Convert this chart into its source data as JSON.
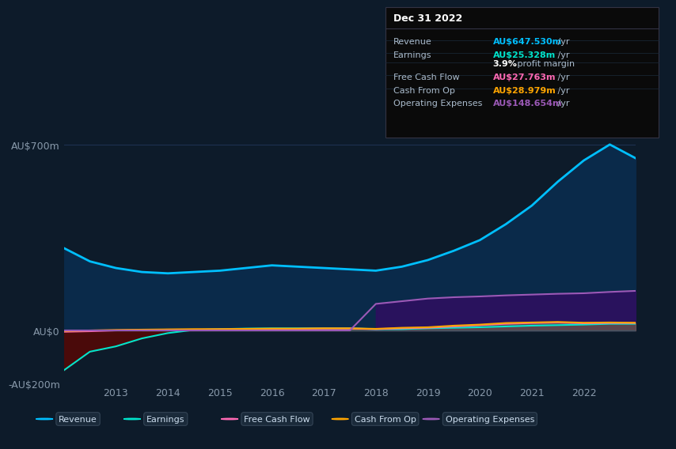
{
  "bg_color": "#0d1b2a",
  "plot_bg_color": "#0d1b2a",
  "years": [
    2012,
    2012.5,
    2013,
    2013.5,
    2014,
    2014.5,
    2015,
    2015.5,
    2016,
    2016.5,
    2017,
    2017.5,
    2018,
    2018.5,
    2019,
    2019.5,
    2020,
    2020.5,
    2021,
    2021.5,
    2022,
    2022.5,
    2023
  ],
  "revenue": [
    310,
    260,
    235,
    220,
    215,
    220,
    225,
    235,
    245,
    240,
    235,
    230,
    225,
    240,
    265,
    300,
    340,
    400,
    470,
    560,
    640,
    700,
    648
  ],
  "earnings": [
    -150,
    -80,
    -60,
    -30,
    -10,
    2,
    5,
    7,
    8,
    8,
    8,
    8,
    5,
    5,
    8,
    10,
    12,
    15,
    18,
    20,
    22,
    25,
    25
  ],
  "free_cash_flow": [
    -5,
    -3,
    0,
    2,
    3,
    3,
    4,
    5,
    5,
    6,
    7,
    7,
    5,
    8,
    10,
    15,
    20,
    25,
    28,
    30,
    27,
    28,
    28
  ],
  "cash_from_op": [
    -2,
    0,
    2,
    3,
    4,
    5,
    5,
    6,
    7,
    7,
    8,
    8,
    6,
    10,
    12,
    18,
    22,
    28,
    30,
    32,
    29,
    30,
    29
  ],
  "operating_expenses": [
    0,
    0,
    0,
    0,
    0,
    0,
    0,
    0,
    0,
    0,
    0,
    0,
    100,
    110,
    120,
    125,
    128,
    132,
    135,
    138,
    140,
    145,
    149
  ],
  "revenue_color": "#00bfff",
  "earnings_color": "#00e5cc",
  "free_cash_flow_color": "#ff69b4",
  "cash_from_op_color": "#ffa500",
  "operating_expenses_color": "#9b59b6",
  "ylim_min": -200,
  "ylim_max": 750,
  "yticks": [
    -200,
    0,
    700
  ],
  "ytick_labels": [
    "-AU$200m",
    "AU$0",
    "AU$700m"
  ],
  "xticks": [
    2013,
    2014,
    2015,
    2016,
    2017,
    2018,
    2019,
    2020,
    2021,
    2022
  ],
  "text_color": "#8899aa",
  "info_box": {
    "title": "Dec 31 2022",
    "rows": [
      {
        "label": "Revenue",
        "value": "AU$647.530m",
        "value_color": "#00bfff"
      },
      {
        "label": "Earnings",
        "value": "AU$25.328m",
        "value_color": "#00e5cc"
      },
      {
        "label": "",
        "value": "3.9% profit margin",
        "value_color": "#aaaaaa"
      },
      {
        "label": "Free Cash Flow",
        "value": "AU$27.763m",
        "value_color": "#ff69b4"
      },
      {
        "label": "Cash From Op",
        "value": "AU$28.979m",
        "value_color": "#ffa500"
      },
      {
        "label": "Operating Expenses",
        "value": "AU$148.654m",
        "value_color": "#9b59b6"
      }
    ]
  },
  "legend_items": [
    {
      "label": "Revenue",
      "color": "#00bfff"
    },
    {
      "label": "Earnings",
      "color": "#00e5cc"
    },
    {
      "label": "Free Cash Flow",
      "color": "#ff69b4"
    },
    {
      "label": "Cash From Op",
      "color": "#ffa500"
    },
    {
      "label": "Operating Expenses",
      "color": "#9b59b6"
    }
  ]
}
